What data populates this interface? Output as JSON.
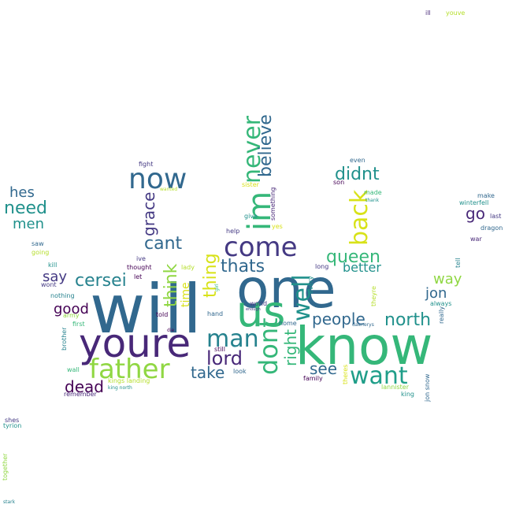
{
  "words": [
    {
      "text": "will",
      "color": "#31688e"
    },
    {
      "text": "one",
      "color": "#31688e"
    },
    {
      "text": "know",
      "color": "#35b779"
    },
    {
      "text": "youre",
      "color": "#482878"
    },
    {
      "text": "us",
      "color": "#35b779"
    },
    {
      "text": "father",
      "color": "#90d743"
    },
    {
      "text": "now",
      "color": "#31688e"
    },
    {
      "text": "im",
      "color": "#35b779"
    },
    {
      "text": "come",
      "color": "#443983"
    },
    {
      "text": "man",
      "color": "#26828e"
    },
    {
      "text": "want",
      "color": "#1f9e89"
    },
    {
      "text": "dont",
      "color": "#35b779"
    },
    {
      "text": "never",
      "color": "#35b779"
    },
    {
      "text": "back",
      "color": "#d8e219"
    },
    {
      "text": "well",
      "color": "#21918c"
    },
    {
      "text": "believe",
      "color": "#31688e"
    },
    {
      "text": "queen",
      "color": "#35b779"
    },
    {
      "text": "didnt",
      "color": "#21918c"
    },
    {
      "text": "thats",
      "color": "#31688e"
    },
    {
      "text": "cant",
      "color": "#31688e"
    },
    {
      "text": "think",
      "color": "#90d743"
    },
    {
      "text": "thing",
      "color": "#d8e219"
    },
    {
      "text": "lord",
      "color": "#482878"
    },
    {
      "text": "take",
      "color": "#31688e"
    },
    {
      "text": "cersei",
      "color": "#26828e"
    },
    {
      "text": "grace",
      "color": "#443983"
    },
    {
      "text": "right",
      "color": "#35b779"
    },
    {
      "text": "people",
      "color": "#31688e"
    },
    {
      "text": "north",
      "color": "#21918c"
    },
    {
      "text": "see",
      "color": "#31688e"
    },
    {
      "text": "need",
      "color": "#21918c"
    },
    {
      "text": "hes",
      "color": "#31688e"
    },
    {
      "text": "men",
      "color": "#21918c"
    },
    {
      "text": "go",
      "color": "#482878"
    },
    {
      "text": "say",
      "color": "#443983"
    },
    {
      "text": "good",
      "color": "#440154"
    },
    {
      "text": "dead",
      "color": "#440154"
    },
    {
      "text": "better",
      "color": "#21918c"
    },
    {
      "text": "jon",
      "color": "#31688e"
    },
    {
      "text": "way",
      "color": "#90d743"
    },
    {
      "text": "time",
      "color": "#d8e219"
    },
    {
      "text": "fight",
      "color": "#443983"
    },
    {
      "text": "wanted",
      "color": "#b5de2b"
    },
    {
      "text": "sister",
      "color": "#d8e219"
    },
    {
      "text": "son",
      "color": "#440154"
    },
    {
      "text": "even",
      "color": "#31688e"
    },
    {
      "text": "made",
      "color": "#35b779"
    },
    {
      "text": "thank",
      "color": "#21918c"
    },
    {
      "text": "give",
      "color": "#21918c"
    },
    {
      "text": "yes",
      "color": "#d8e219"
    },
    {
      "text": "something",
      "color": "#482878"
    },
    {
      "text": "help",
      "color": "#443983"
    },
    {
      "text": "make",
      "color": "#31688e"
    },
    {
      "text": "winterfell",
      "color": "#21918c"
    },
    {
      "text": "last",
      "color": "#443983"
    },
    {
      "text": "dragon",
      "color": "#31688e"
    },
    {
      "text": "war",
      "color": "#482878"
    },
    {
      "text": "tell",
      "color": "#26828e"
    },
    {
      "text": "saw",
      "color": "#31688e"
    },
    {
      "text": "going",
      "color": "#b5de2b"
    },
    {
      "text": "kill",
      "color": "#21918c"
    },
    {
      "text": "wont",
      "color": "#443983"
    },
    {
      "text": "nothing",
      "color": "#26828e"
    },
    {
      "text": "army",
      "color": "#90d743"
    },
    {
      "text": "first",
      "color": "#35b779"
    },
    {
      "text": "brother",
      "color": "#26828e"
    },
    {
      "text": "wall",
      "color": "#35b779"
    },
    {
      "text": "kings landing",
      "color": "#b5de2b"
    },
    {
      "text": "king north",
      "color": "#21918c"
    },
    {
      "text": "remember",
      "color": "#482878"
    },
    {
      "text": "ive",
      "color": "#443983"
    },
    {
      "text": "thought",
      "color": "#440154"
    },
    {
      "text": "let",
      "color": "#440154"
    },
    {
      "text": "lady",
      "color": "#b5de2b"
    },
    {
      "text": "told",
      "color": "#440154"
    },
    {
      "text": "hand",
      "color": "#31688e"
    },
    {
      "text": "girl",
      "color": "#35b779"
    },
    {
      "text": "still",
      "color": "#440154"
    },
    {
      "text": "die",
      "color": "#440154"
    },
    {
      "text": "look",
      "color": "#31688e"
    },
    {
      "text": "world",
      "color": "#443983"
    },
    {
      "text": "enough",
      "color": "#443983"
    },
    {
      "text": "home",
      "color": "#31688e"
    },
    {
      "text": "daenerys",
      "color": "#31688e"
    },
    {
      "text": "every",
      "color": "#21918c"
    },
    {
      "text": "long",
      "color": "#443983"
    },
    {
      "text": "theyre",
      "color": "#b5de2b"
    },
    {
      "text": "theres",
      "color": "#d8e219"
    },
    {
      "text": "family",
      "color": "#440154"
    },
    {
      "text": "lannister",
      "color": "#90d743"
    },
    {
      "text": "king",
      "color": "#21918c"
    },
    {
      "text": "jon snow",
      "color": "#31688e"
    },
    {
      "text": "always",
      "color": "#21918c"
    },
    {
      "text": "really",
      "color": "#31688e"
    },
    {
      "text": "ill",
      "color": "#482878"
    },
    {
      "text": "youve",
      "color": "#b5de2b"
    },
    {
      "text": "shes",
      "color": "#443983"
    },
    {
      "text": "tyrion",
      "color": "#21918c"
    },
    {
      "text": "together",
      "color": "#90d743"
    },
    {
      "text": "stark",
      "color": "#26828e"
    }
  ]
}
